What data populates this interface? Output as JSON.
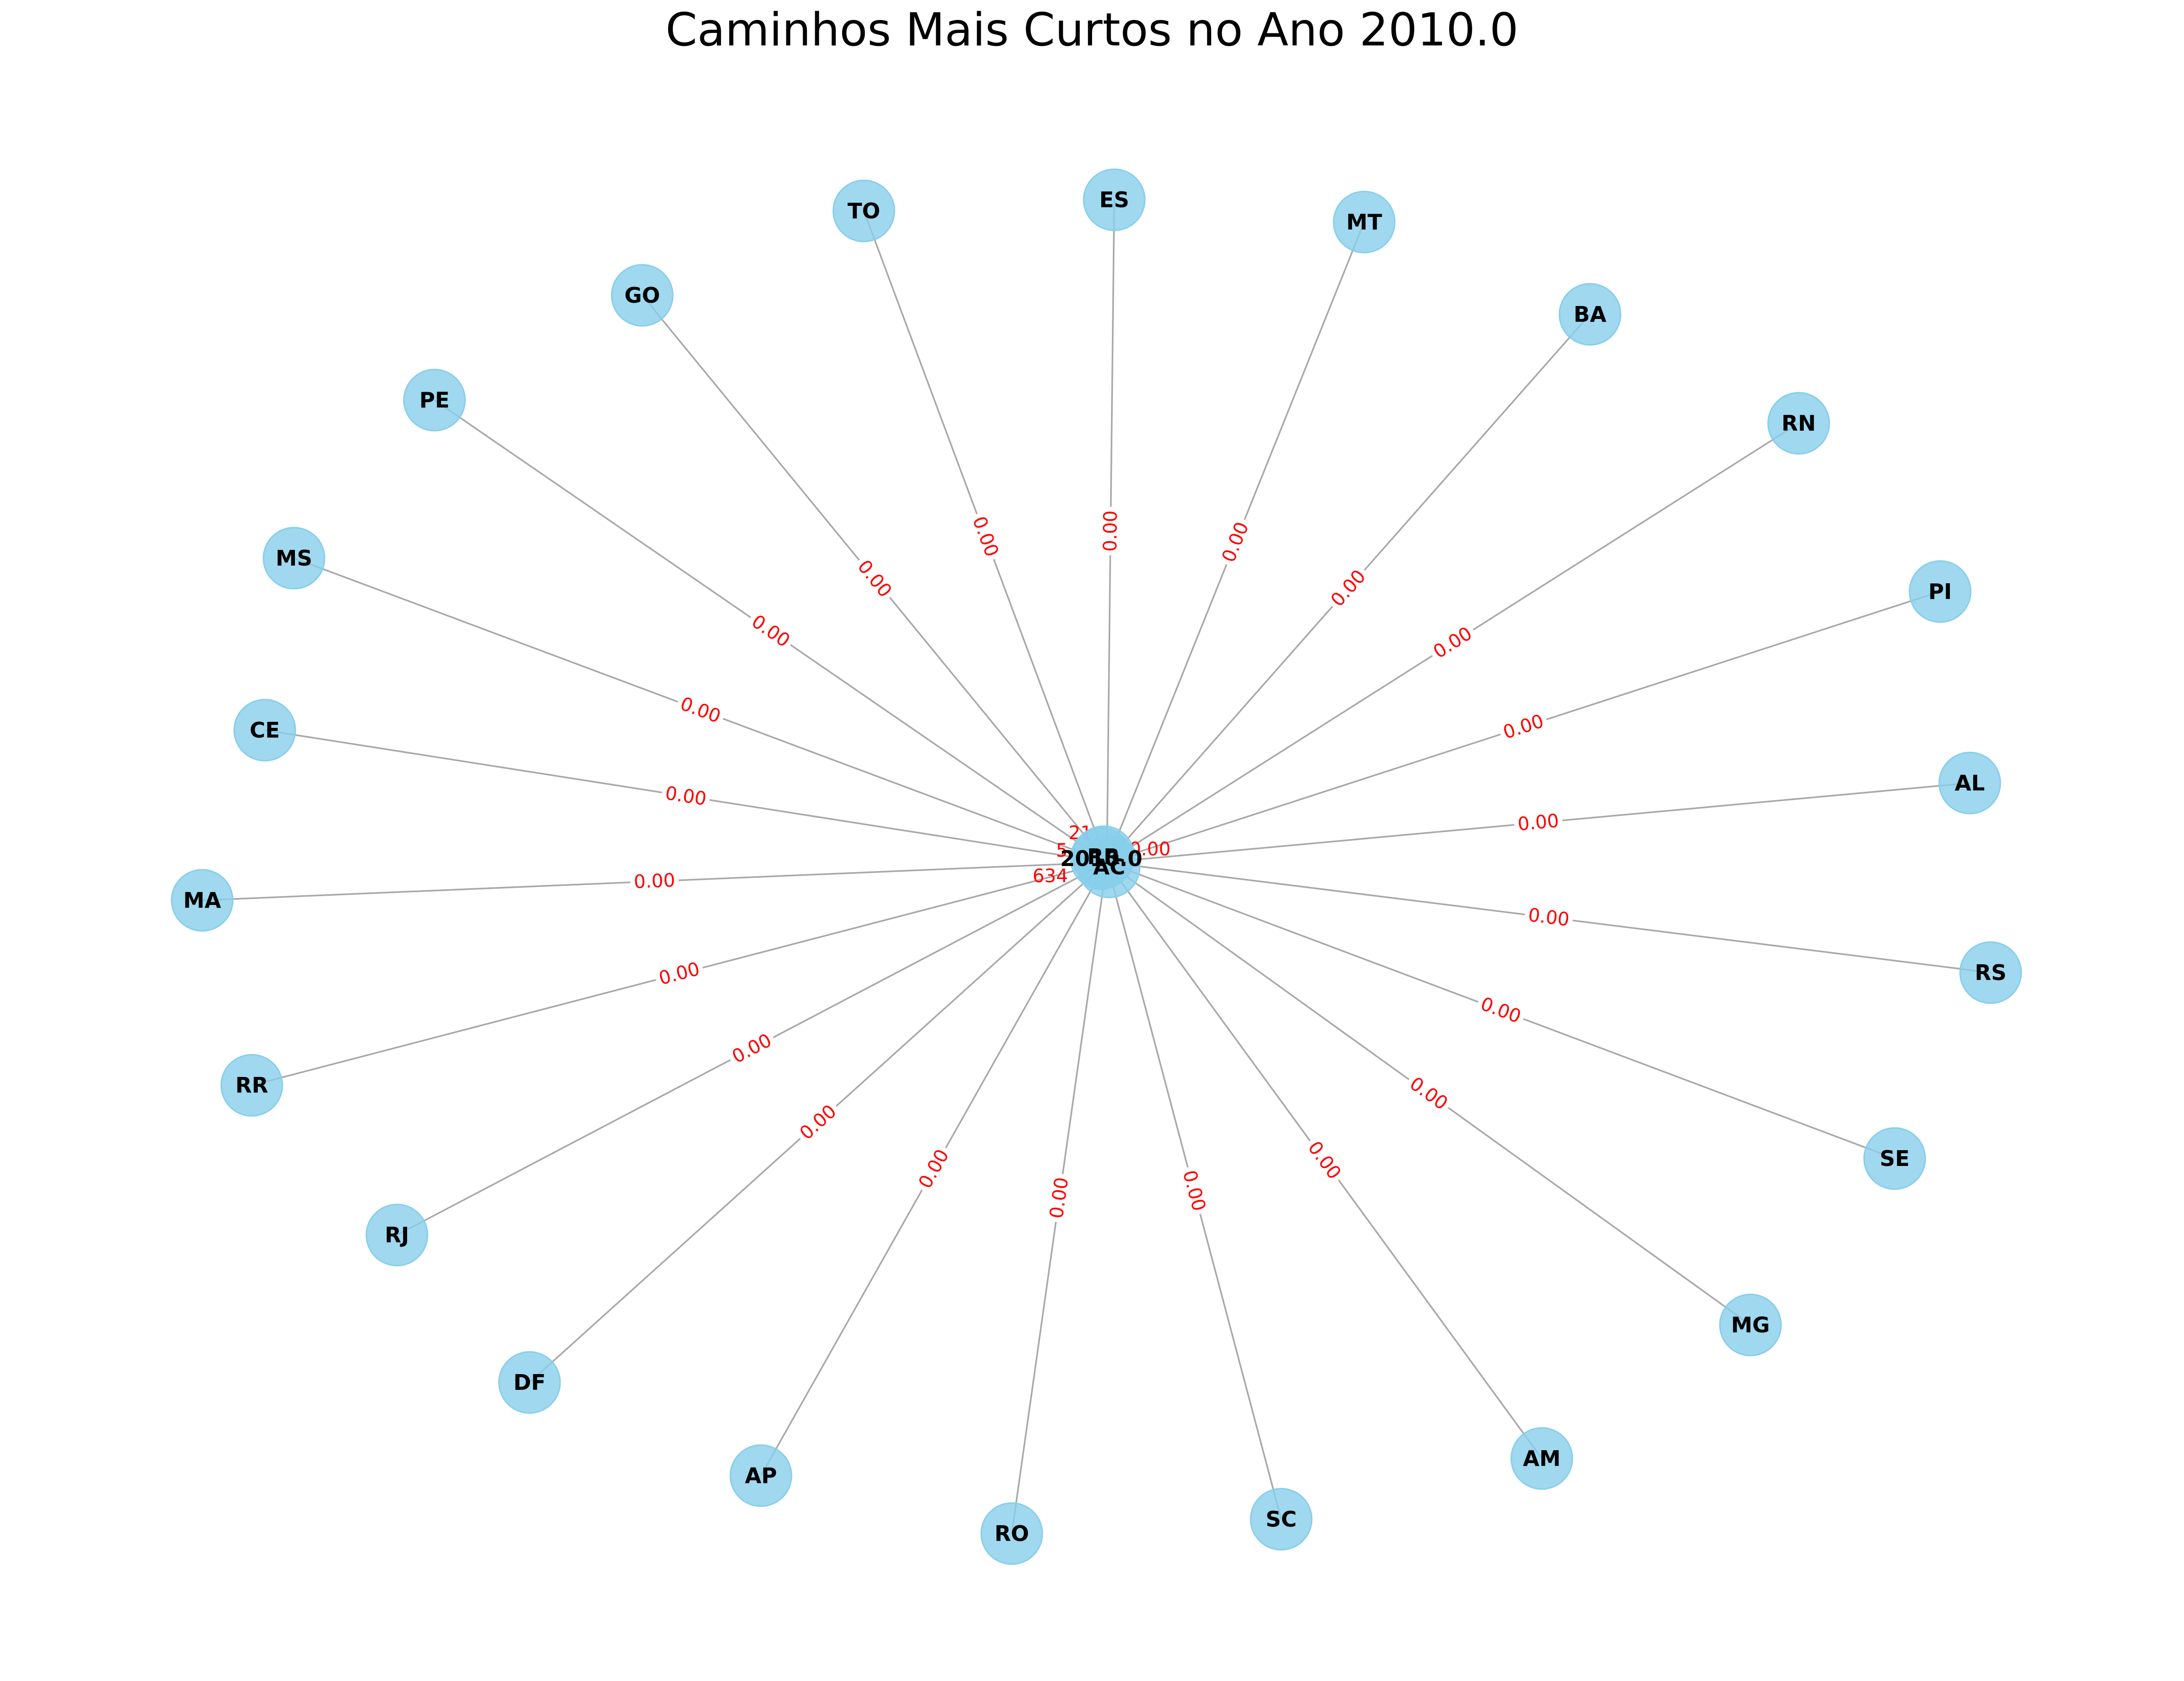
{
  "title": "Caminhos Mais Curtos no Ano 2010.0",
  "colors": {
    "node": "#87ceeb",
    "edge": "#a8a8a8",
    "edge_label": "#ff0000"
  },
  "center_nodes": [
    "AC",
    "RR",
    "2010.0"
  ],
  "nodes": [
    "TO",
    "ES",
    "MT",
    "BA",
    "RN",
    "PI",
    "AL",
    "RS",
    "SE",
    "MG",
    "AM",
    "SC",
    "RO",
    "AP",
    "DF",
    "RJ",
    "RR",
    "MA",
    "CE",
    "MS",
    "PE",
    "GO"
  ],
  "edge_labels": {
    "TO": "0.00",
    "ES": "0.00",
    "MT": "0.00",
    "BA": "0.00",
    "RN": "0.00",
    "PI": "0.00",
    "AL": "0.00",
    "RS": "0.00",
    "SE": "0.00",
    "MG": "0.00",
    "AM": "0.00",
    "SC": "0.00",
    "RO": "0.00",
    "AP": "0.00",
    "DF": "0.00",
    "RJ": "0.00",
    "RR": "0.00",
    "MA": "0.00",
    "CE": "0.00",
    "MS": "0.00",
    "PE": "0.00",
    "GO": "0.00"
  },
  "center_edge_fragments": [
    "21",
    "5",
    "634"
  ]
}
